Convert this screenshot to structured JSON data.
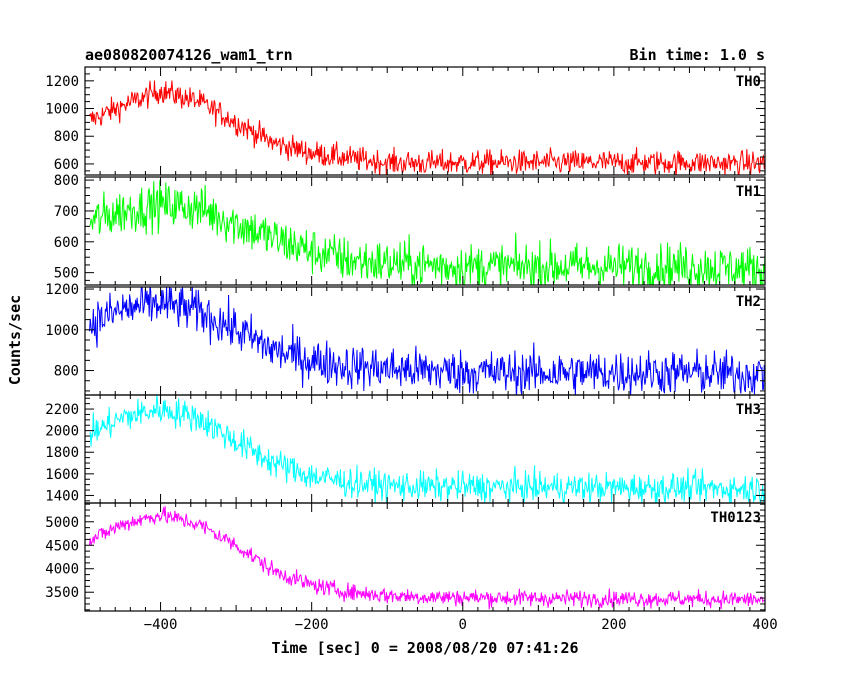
{
  "header": {
    "title": "ae080820074126_wam1_trn",
    "bin_time": "Bin time: 1.0 s"
  },
  "axes": {
    "xlabel": "Time [sec] 0 = 2008/08/20 07:41:26",
    "ylabel": "Counts/sec"
  },
  "chart_data": {
    "type": "line",
    "title": "ae080820074126_wam1_trn",
    "xlabel": "Time [sec] 0 = 2008/08/20 07:41:26",
    "ylabel": "Counts/sec",
    "xlim": [
      -500,
      400
    ],
    "x_ticks": [
      -400,
      -200,
      0,
      200,
      400
    ],
    "x_tick_labels": [
      "−400",
      "−200",
      "0",
      "200",
      "400"
    ],
    "panels": [
      {
        "name": "TH0",
        "color": "#ff0000",
        "ylim": [
          520,
          1300
        ],
        "y_ticks": [
          600,
          800,
          1000,
          1200
        ],
        "y_tick_labels": [
          "600",
          "800",
          "1000",
          "1200"
        ],
        "noise": 45,
        "x": [
          -500,
          -450,
          -400,
          -350,
          -300,
          -250,
          -200,
          -150,
          -100,
          -50,
          0,
          50,
          100,
          150,
          200,
          250,
          300,
          350,
          400
        ],
        "values": [
          900,
          1020,
          1130,
          1050,
          900,
          750,
          680,
          640,
          610,
          605,
          610,
          610,
          610,
          610,
          610,
          610,
          610,
          605,
          605
        ]
      },
      {
        "name": "TH1",
        "color": "#00ff00",
        "ylim": [
          460,
          810
        ],
        "y_ticks": [
          500,
          600,
          700,
          800
        ],
        "y_tick_labels": [
          "500",
          "600",
          "700",
          "800"
        ],
        "noise": 38,
        "x": [
          -500,
          -450,
          -400,
          -350,
          -300,
          -250,
          -200,
          -150,
          -100,
          -50,
          0,
          50,
          100,
          150,
          200,
          250,
          300,
          350,
          400
        ],
        "values": [
          660,
          700,
          720,
          710,
          660,
          610,
          570,
          540,
          530,
          525,
          520,
          520,
          520,
          520,
          520,
          520,
          520,
          515,
          510
        ]
      },
      {
        "name": "TH2",
        "color": "#0000ff",
        "ylim": [
          680,
          1210
        ],
        "y_ticks": [
          800,
          1000,
          1200
        ],
        "y_tick_labels": [
          "800",
          "1000",
          "1200"
        ],
        "noise": 55,
        "x": [
          -500,
          -450,
          -400,
          -350,
          -300,
          -250,
          -200,
          -150,
          -100,
          -50,
          0,
          50,
          100,
          150,
          200,
          250,
          300,
          350,
          400
        ],
        "values": [
          1020,
          1100,
          1130,
          1090,
          1000,
          900,
          850,
          820,
          810,
          800,
          795,
          790,
          790,
          790,
          790,
          790,
          790,
          785,
          780
        ]
      },
      {
        "name": "TH3",
        "color": "#00ffff",
        "ylim": [
          1330,
          2330
        ],
        "y_ticks": [
          1400,
          1600,
          1800,
          2000,
          2200
        ],
        "y_tick_labels": [
          "1400",
          "1600",
          "1800",
          "2000",
          "2200"
        ],
        "noise": 70,
        "x": [
          -500,
          -450,
          -400,
          -350,
          -300,
          -250,
          -200,
          -150,
          -100,
          -50,
          0,
          50,
          100,
          150,
          200,
          250,
          300,
          350,
          400
        ],
        "values": [
          1950,
          2120,
          2200,
          2120,
          1900,
          1700,
          1580,
          1520,
          1490,
          1480,
          1480,
          1475,
          1475,
          1475,
          1470,
          1470,
          1470,
          1465,
          1460
        ]
      },
      {
        "name": "TH0123",
        "color": "#ff00ff",
        "ylim": [
          3100,
          5400
        ],
        "y_ticks": [
          3500,
          4000,
          4500,
          5000
        ],
        "y_tick_labels": [
          "3500",
          "4000",
          "4500",
          "5000"
        ],
        "noise": 90,
        "x": [
          -500,
          -450,
          -400,
          -350,
          -300,
          -250,
          -200,
          -150,
          -100,
          -50,
          0,
          50,
          100,
          150,
          200,
          250,
          300,
          350,
          400
        ],
        "values": [
          4550,
          4950,
          5150,
          4950,
          4500,
          3950,
          3650,
          3500,
          3430,
          3400,
          3390,
          3380,
          3370,
          3370,
          3365,
          3360,
          3355,
          3350,
          3340
        ]
      }
    ]
  }
}
